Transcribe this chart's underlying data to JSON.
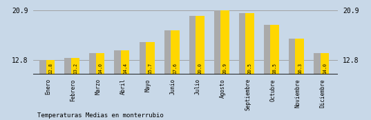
{
  "categories": [
    "Enero",
    "Febrero",
    "Marzo",
    "Abril",
    "Mayo",
    "Junio",
    "Julio",
    "Agosto",
    "Septiembre",
    "Octubre",
    "Noviembre",
    "Diciembre"
  ],
  "values": [
    12.8,
    13.2,
    14.0,
    14.4,
    15.7,
    17.6,
    20.0,
    20.9,
    20.5,
    18.5,
    16.3,
    14.0
  ],
  "bar_color_yellow": "#FFD700",
  "bar_color_gray": "#AAAAAA",
  "background_color": "#C8D8E8",
  "title": "Temperaturas Medias en monterrubio",
  "ylim_min": 10.5,
  "ylim_max": 21.8,
  "ybase": 10.5,
  "yticks": [
    12.8,
    20.9
  ],
  "hline_y1": 20.9,
  "hline_y2": 12.8,
  "value_label_fontsize": 4.8,
  "title_fontsize": 6.5,
  "tick_label_fontsize": 5.5
}
